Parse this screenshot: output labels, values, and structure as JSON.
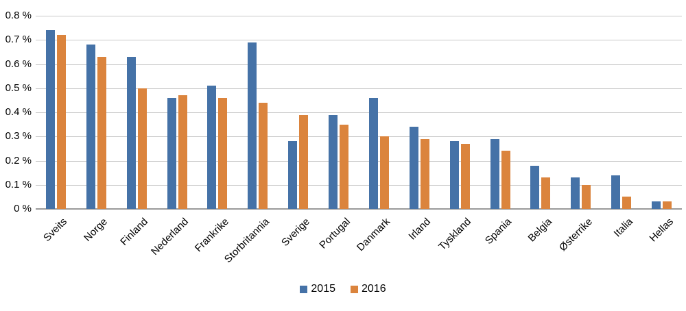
{
  "chart_data": {
    "type": "bar",
    "title": "",
    "xlabel": "",
    "ylabel": "",
    "categories": [
      "Sveits",
      "Norge",
      "Finland",
      "Nederland",
      "Frankrike",
      "Storbritannia",
      "Sverige",
      "Portugal",
      "Danmark",
      "Irland",
      "Tyskland",
      "Spania",
      "Belgia",
      "Østerrike",
      "Italia",
      "Hellas"
    ],
    "series": [
      {
        "name": "2015",
        "color": "#4572A7",
        "values": [
          0.74,
          0.68,
          0.63,
          0.46,
          0.51,
          0.69,
          0.28,
          0.39,
          0.46,
          0.34,
          0.28,
          0.29,
          0.18,
          0.13,
          0.14,
          0.03
        ]
      },
      {
        "name": "2016",
        "color": "#DB843D",
        "values": [
          0.72,
          0.63,
          0.5,
          0.47,
          0.46,
          0.44,
          0.39,
          0.35,
          0.3,
          0.29,
          0.27,
          0.24,
          0.13,
          0.1,
          0.05,
          0.03
        ]
      }
    ],
    "ylim": [
      0,
      0.8
    ],
    "ytick_step": 0.1,
    "ytick_labels": [
      "0 %",
      "0.1 %",
      "0.2 %",
      "0.3 %",
      "0.4 %",
      "0.5 %",
      "0.6 %",
      "0.7 %",
      "0.8 %"
    ],
    "grid": "horizontal-only",
    "legend_position": "bottom-center",
    "colors": {
      "gridline": "#C7C7C7",
      "axis_line": "#9A9A9A",
      "text": "#000000",
      "background": "#FFFFFF"
    }
  }
}
